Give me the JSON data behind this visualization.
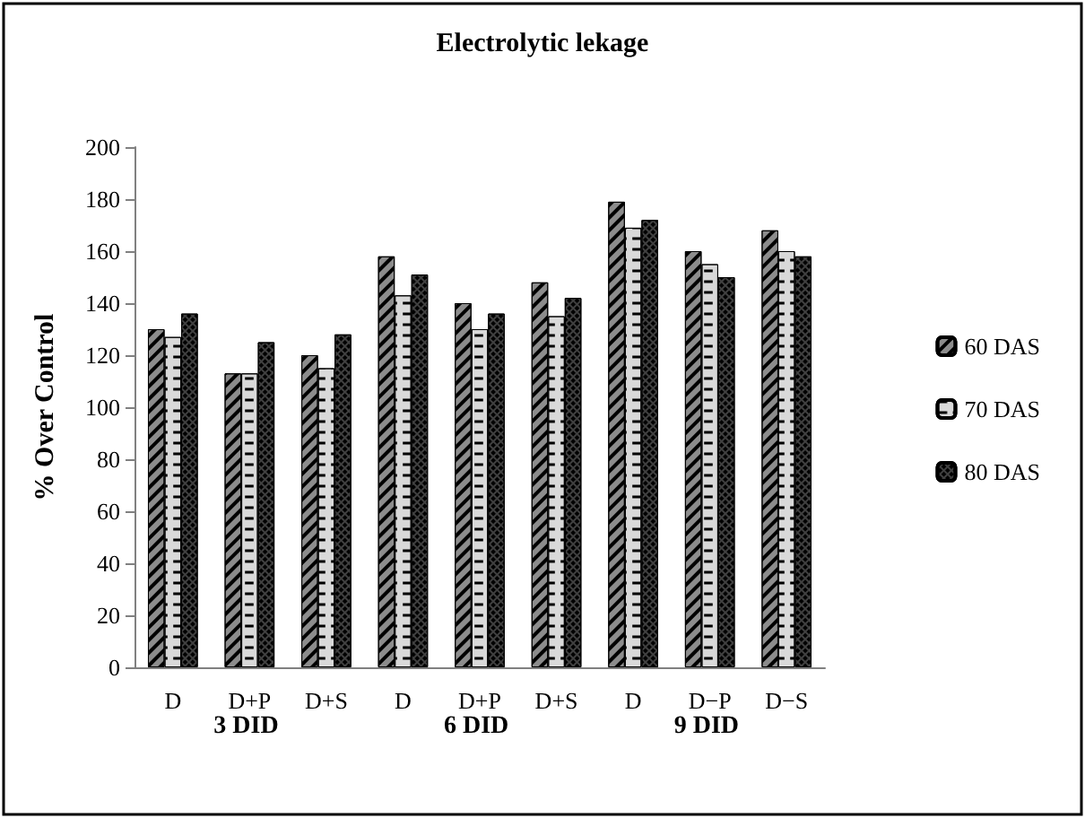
{
  "chart_data": {
    "type": "bar",
    "title": "Electrolytic lekage",
    "ylabel": "% Over Control",
    "categories": [
      "D",
      "D+P",
      "D+S",
      "D",
      "D+P",
      "D+S",
      "D",
      "D−P",
      "D−S"
    ],
    "series": [
      {
        "name": "60 DAS",
        "color": "#8c8c8c",
        "values": [
          130,
          113,
          120,
          158,
          140,
          148,
          179,
          160,
          168
        ]
      },
      {
        "name": "70 DAS",
        "color": "#d9d9d9",
        "values": [
          127,
          113,
          115,
          143,
          130,
          135,
          169,
          155,
          160
        ]
      },
      {
        "name": "80 DAS",
        "color": "#404040",
        "values": [
          136,
          125,
          128,
          151,
          136,
          142,
          172,
          150,
          158
        ]
      }
    ],
    "annotations": [
      "3 DID",
      "6 DID",
      "9 DID"
    ],
    "ylim": [
      0,
      200
    ],
    "yticks": [
      0,
      20,
      40,
      60,
      80,
      100,
      120,
      140,
      160,
      180,
      200
    ],
    "grid": false,
    "legend": "right"
  }
}
